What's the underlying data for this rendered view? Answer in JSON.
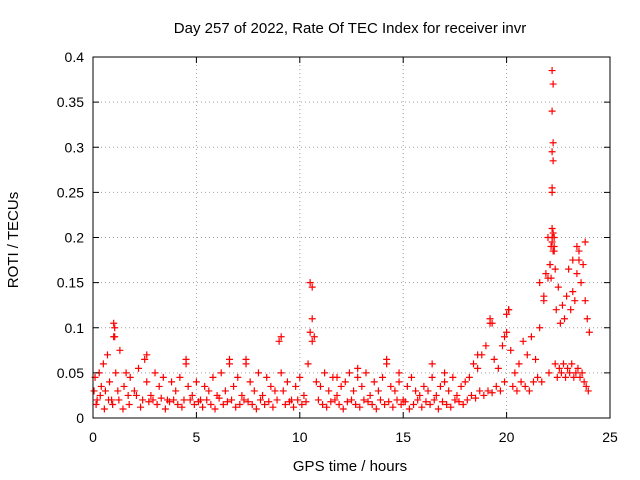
{
  "chart_data": {
    "type": "scatter",
    "title": "Day 257 of 2022, Rate Of TEC Index for receiver invr",
    "xlabel": "GPS time / hours",
    "ylabel": "ROTI / TECUs",
    "xlim": [
      0,
      25
    ],
    "ylim": [
      0,
      0.4
    ],
    "xticks": [
      0,
      5,
      10,
      15,
      20,
      25
    ],
    "yticks": [
      0,
      0.05,
      0.1,
      0.15,
      0.2,
      0.25,
      0.3,
      0.35,
      0.4
    ],
    "xtick_labels": [
      "0",
      "5",
      "10",
      "15",
      "20",
      "25"
    ],
    "ytick_labels": [
      "0",
      "0.05",
      "0.1",
      "0.15",
      "0.2",
      "0.25",
      "0.3",
      "0.35",
      "0.4"
    ],
    "grid": true,
    "marker": "+",
    "colors": {
      "series": "#ff0000",
      "grid": "#a0a0a0",
      "axes": "#000000"
    },
    "series": [
      {
        "name": "ROTI",
        "x": [
          0.05,
          0.1,
          0.2,
          0.3,
          0.4,
          0.5,
          0.6,
          0.7,
          0.8,
          0.9,
          1.0,
          1.05,
          1.1,
          1.2,
          1.3,
          1.5,
          1.6,
          1.7,
          1.8,
          2.0,
          2.2,
          2.4,
          2.5,
          2.6,
          2.8,
          3.0,
          3.2,
          3.4,
          3.6,
          3.8,
          4.0,
          4.2,
          4.4,
          4.5,
          4.6,
          4.8,
          5.0,
          5.2,
          5.4,
          5.6,
          5.8,
          6.0,
          6.2,
          6.4,
          6.6,
          6.8,
          7.0,
          7.2,
          7.4,
          7.6,
          7.8,
          8.0,
          8.2,
          8.4,
          8.6,
          8.8,
          9.0,
          9.1,
          9.2,
          9.4,
          9.6,
          9.8,
          10.0,
          10.2,
          10.4,
          10.5,
          10.6,
          10.7,
          10.8,
          11.0,
          11.2,
          11.4,
          11.6,
          11.8,
          12.0,
          12.2,
          12.4,
          12.6,
          12.8,
          13.0,
          13.2,
          13.4,
          13.6,
          13.8,
          14.0,
          14.2,
          14.4,
          14.6,
          14.8,
          15.0,
          15.2,
          15.4,
          15.6,
          15.8,
          16.0,
          16.2,
          16.4,
          16.6,
          16.8,
          17.0,
          17.2,
          17.4,
          17.6,
          17.8,
          18.0,
          18.2,
          18.4,
          18.6,
          18.8,
          19.0,
          19.2,
          19.4,
          19.6,
          19.8,
          20.0,
          20.1,
          20.2,
          20.4,
          20.6,
          20.8,
          21.0,
          21.2,
          21.4,
          21.6,
          21.8,
          21.9,
          22.0,
          22.1,
          22.15,
          22.2,
          22.25,
          22.3,
          22.4,
          22.5,
          22.6,
          22.7,
          22.8,
          22.9,
          23.0,
          23.1,
          23.2,
          23.3,
          23.4,
          23.5,
          23.6,
          23.7,
          23.8,
          23.9,
          24.0,
          0.15,
          0.35,
          0.55,
          0.75,
          0.95,
          1.25,
          1.45,
          1.75,
          2.1,
          2.3,
          2.7,
          2.9,
          3.1,
          3.3,
          3.5,
          3.7,
          3.9,
          4.1,
          4.3,
          4.7,
          4.9,
          5.1,
          5.3,
          5.5,
          5.7,
          5.9,
          6.1,
          6.3,
          6.5,
          6.7,
          6.9,
          7.1,
          7.3,
          7.5,
          7.7,
          7.9,
          8.1,
          8.3,
          8.5,
          8.7,
          8.9,
          9.3,
          9.5,
          9.7,
          9.9,
          10.1,
          10.3,
          10.9,
          11.1,
          11.3,
          11.5,
          11.7,
          11.9,
          12.1,
          12.3,
          12.5,
          12.7,
          12.9,
          13.1,
          13.3,
          13.5,
          13.7,
          13.9,
          14.1,
          14.3,
          14.5,
          14.7,
          14.9,
          15.1,
          15.3,
          15.5,
          15.7,
          15.9,
          16.1,
          16.3,
          16.5,
          16.7,
          16.9,
          17.1,
          17.3,
          17.5,
          17.7,
          17.9,
          18.1,
          18.3,
          18.5,
          18.7,
          18.9,
          19.1,
          19.3,
          19.5,
          19.7,
          19.9,
          20.3,
          20.5,
          20.7,
          20.9,
          21.1,
          21.3,
          21.5,
          21.7,
          22.05,
          22.35,
          22.45,
          22.55,
          22.65,
          22.75,
          22.85,
          22.95,
          23.05,
          23.15,
          23.25,
          23.35,
          23.45,
          23.55,
          23.65,
          23.75,
          23.85,
          23.95,
          1.0,
          1.05,
          2.6,
          4.5,
          6.6,
          7.4,
          9.1,
          10.5,
          10.6,
          10.6,
          11.8,
          12.8,
          14.2,
          14.8,
          16.4,
          17.0,
          18.6,
          19.2,
          19.3,
          19.9,
          20.0,
          20.1,
          21.6,
          21.8,
          22.0,
          22.1,
          22.15,
          22.2,
          22.2,
          22.25,
          22.3,
          22.3,
          22.35,
          23.2,
          23.4,
          23.5,
          23.8,
          22.2,
          22.2,
          22.25,
          22.2,
          22.25,
          22.2,
          22.25,
          22.2
        ],
        "y": [
          0.03,
          0.045,
          0.02,
          0.05,
          0.035,
          0.06,
          0.03,
          0.07,
          0.04,
          0.02,
          0.09,
          0.1,
          0.05,
          0.03,
          0.075,
          0.035,
          0.05,
          0.025,
          0.045,
          0.03,
          0.055,
          0.02,
          0.065,
          0.04,
          0.025,
          0.05,
          0.035,
          0.045,
          0.02,
          0.04,
          0.03,
          0.045,
          0.02,
          0.06,
          0.035,
          0.025,
          0.04,
          0.02,
          0.035,
          0.03,
          0.045,
          0.025,
          0.05,
          0.03,
          0.06,
          0.035,
          0.045,
          0.025,
          0.065,
          0.04,
          0.03,
          0.05,
          0.025,
          0.045,
          0.035,
          0.03,
          0.085,
          0.05,
          0.03,
          0.04,
          0.02,
          0.035,
          0.045,
          0.025,
          0.06,
          0.15,
          0.11,
          0.09,
          0.04,
          0.035,
          0.05,
          0.03,
          0.045,
          0.025,
          0.035,
          0.04,
          0.05,
          0.03,
          0.045,
          0.035,
          0.05,
          0.025,
          0.04,
          0.03,
          0.045,
          0.06,
          0.035,
          0.03,
          0.04,
          0.02,
          0.035,
          0.045,
          0.03,
          0.025,
          0.035,
          0.03,
          0.045,
          0.025,
          0.035,
          0.04,
          0.03,
          0.045,
          0.025,
          0.035,
          0.04,
          0.045,
          0.06,
          0.055,
          0.07,
          0.08,
          0.105,
          0.065,
          0.055,
          0.08,
          0.095,
          0.12,
          0.075,
          0.05,
          0.06,
          0.085,
          0.07,
          0.09,
          0.065,
          0.1,
          0.13,
          0.16,
          0.2,
          0.17,
          0.155,
          0.21,
          0.185,
          0.19,
          0.12,
          0.145,
          0.105,
          0.125,
          0.11,
          0.135,
          0.165,
          0.12,
          0.175,
          0.13,
          0.16,
          0.185,
          0.15,
          0.17,
          0.13,
          0.11,
          0.095,
          0.015,
          0.025,
          0.01,
          0.02,
          0.015,
          0.02,
          0.01,
          0.015,
          0.025,
          0.012,
          0.018,
          0.02,
          0.015,
          0.022,
          0.01,
          0.018,
          0.02,
          0.015,
          0.012,
          0.02,
          0.015,
          0.018,
          0.012,
          0.02,
          0.015,
          0.01,
          0.022,
          0.015,
          0.018,
          0.02,
          0.012,
          0.015,
          0.02,
          0.018,
          0.015,
          0.01,
          0.02,
          0.015,
          0.018,
          0.012,
          0.02,
          0.015,
          0.018,
          0.012,
          0.02,
          0.015,
          0.018,
          0.02,
          0.015,
          0.012,
          0.018,
          0.02,
          0.015,
          0.01,
          0.018,
          0.02,
          0.015,
          0.012,
          0.02,
          0.018,
          0.015,
          0.01,
          0.02,
          0.015,
          0.018,
          0.012,
          0.02,
          0.015,
          0.018,
          0.01,
          0.015,
          0.02,
          0.012,
          0.018,
          0.015,
          0.02,
          0.01,
          0.018,
          0.015,
          0.012,
          0.02,
          0.018,
          0.015,
          0.02,
          0.025,
          0.022,
          0.03,
          0.025,
          0.03,
          0.028,
          0.035,
          0.03,
          0.04,
          0.035,
          0.03,
          0.04,
          0.035,
          0.03,
          0.04,
          0.045,
          0.04,
          0.05,
          0.06,
          0.045,
          0.055,
          0.05,
          0.06,
          0.045,
          0.055,
          0.05,
          0.06,
          0.045,
          0.05,
          0.055,
          0.045,
          0.05,
          0.04,
          0.035,
          0.03,
          0.105,
          0.09,
          0.07,
          0.065,
          0.065,
          0.06,
          0.09,
          0.095,
          0.085,
          0.145,
          0.045,
          0.055,
          0.065,
          0.05,
          0.06,
          0.05,
          0.07,
          0.11,
          0.105,
          0.09,
          0.115,
          0.12,
          0.15,
          0.135,
          0.155,
          0.17,
          0.19,
          0.2,
          0.195,
          0.205,
          0.2,
          0.185,
          0.165,
          0.14,
          0.19,
          0.175,
          0.195,
          0.25,
          0.255,
          0.285,
          0.295,
          0.305,
          0.34,
          0.37,
          0.385
        ]
      }
    ]
  }
}
